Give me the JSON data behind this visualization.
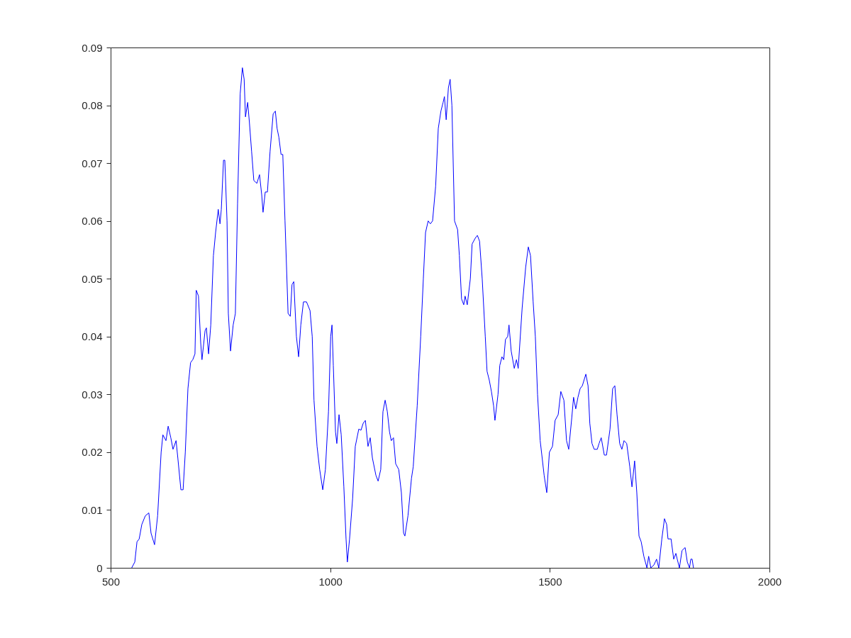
{
  "chart_data": {
    "type": "line",
    "x": [
      548,
      555,
      560,
      565,
      571,
      579,
      587,
      592,
      600,
      607,
      615,
      619,
      626,
      631,
      637,
      642,
      649,
      653,
      660,
      665,
      670,
      676,
      682,
      687,
      692,
      695,
      700,
      705,
      708,
      715,
      718,
      723,
      728,
      734,
      739,
      745,
      749,
      752,
      757,
      760,
      765,
      768,
      773,
      779,
      784,
      789,
      795,
      800,
      804,
      807,
      812,
      816,
      821,
      826,
      833,
      839,
      844,
      847,
      852,
      857,
      863,
      870,
      875,
      879,
      883,
      888,
      892,
      897,
      904,
      909,
      913,
      917,
      923,
      928,
      933,
      939,
      946,
      954,
      959,
      963,
      970,
      976,
      983,
      989,
      996,
      1001,
      1004,
      1007,
      1012,
      1015,
      1020,
      1025,
      1031,
      1036,
      1039,
      1044,
      1051,
      1057,
      1065,
      1070,
      1075,
      1080,
      1086,
      1091,
      1096,
      1104,
      1109,
      1115,
      1120,
      1125,
      1130,
      1135,
      1139,
      1144,
      1149,
      1156,
      1162,
      1167,
      1170,
      1177,
      1185,
      1189,
      1198,
      1206,
      1212,
      1217,
      1223,
      1228,
      1233,
      1240,
      1246,
      1252,
      1257,
      1260,
      1264,
      1269,
      1273,
      1277,
      1283,
      1290,
      1294,
      1299,
      1304,
      1307,
      1312,
      1319,
      1323,
      1330,
      1335,
      1340,
      1346,
      1353,
      1357,
      1362,
      1367,
      1372,
      1375,
      1382,
      1386,
      1391,
      1395,
      1399,
      1404,
      1407,
      1412,
      1419,
      1424,
      1428,
      1437,
      1445,
      1451,
      1456,
      1462,
      1467,
      1472,
      1478,
      1487,
      1493,
      1499,
      1506,
      1512,
      1519,
      1525,
      1532,
      1538,
      1543,
      1550,
      1554,
      1559,
      1564,
      1569,
      1574,
      1582,
      1587,
      1591,
      1596,
      1601,
      1608,
      1612,
      1617,
      1624,
      1629,
      1637,
      1643,
      1648,
      1653,
      1659,
      1664,
      1669,
      1675,
      1682,
      1687,
      1693,
      1698,
      1703,
      1708,
      1714,
      1721,
      1725,
      1730,
      1737,
      1743,
      1748,
      1755,
      1761,
      1766,
      1769,
      1776,
      1782,
      1787,
      1790,
      1795,
      1801,
      1808,
      1813,
      1818,
      1821,
      1824,
      1827
    ],
    "series": [
      {
        "color": "#0000ff",
        "values": [
          0,
          0.001,
          0.0045,
          0.005,
          0.0075,
          0.009,
          0.0095,
          0.006,
          0.004,
          0.009,
          0.02,
          0.023,
          0.022,
          0.0245,
          0.0225,
          0.0205,
          0.022,
          0.019,
          0.0135,
          0.0135,
          0.02,
          0.031,
          0.0355,
          0.036,
          0.037,
          0.048,
          0.047,
          0.039,
          0.036,
          0.041,
          0.0415,
          0.037,
          0.042,
          0.054,
          0.058,
          0.062,
          0.0595,
          0.062,
          0.0705,
          0.0705,
          0.06,
          0.044,
          0.0375,
          0.042,
          0.044,
          0.063,
          0.082,
          0.0865,
          0.0845,
          0.078,
          0.0805,
          0.077,
          0.072,
          0.067,
          0.0665,
          0.068,
          0.0645,
          0.0615,
          0.065,
          0.065,
          0.072,
          0.0785,
          0.079,
          0.076,
          0.0745,
          0.0715,
          0.0715,
          0.06,
          0.044,
          0.0435,
          0.049,
          0.0495,
          0.04,
          0.0365,
          0.042,
          0.046,
          0.046,
          0.0445,
          0.04,
          0.029,
          0.021,
          0.017,
          0.0135,
          0.017,
          0.027,
          0.04,
          0.042,
          0.035,
          0.0235,
          0.0215,
          0.0265,
          0.023,
          0.014,
          0.005,
          0.001,
          0.005,
          0.012,
          0.021,
          0.024,
          0.0238,
          0.025,
          0.0255,
          0.021,
          0.0225,
          0.019,
          0.016,
          0.015,
          0.017,
          0.027,
          0.029,
          0.027,
          0.0235,
          0.022,
          0.0225,
          0.018,
          0.017,
          0.013,
          0.006,
          0.0055,
          0.009,
          0.0155,
          0.0175,
          0.028,
          0.04,
          0.05,
          0.058,
          0.06,
          0.0595,
          0.06,
          0.066,
          0.076,
          0.079,
          0.0805,
          0.0815,
          0.0775,
          0.083,
          0.0845,
          0.08,
          0.06,
          0.0585,
          0.054,
          0.0465,
          0.0455,
          0.047,
          0.0455,
          0.05,
          0.056,
          0.057,
          0.0575,
          0.0565,
          0.05,
          0.04,
          0.034,
          0.0325,
          0.0305,
          0.028,
          0.0255,
          0.03,
          0.035,
          0.0365,
          0.036,
          0.0395,
          0.04,
          0.042,
          0.0375,
          0.0345,
          0.036,
          0.0345,
          0.045,
          0.052,
          0.0555,
          0.054,
          0.046,
          0.04,
          0.03,
          0.022,
          0.016,
          0.013,
          0.02,
          0.021,
          0.0255,
          0.0265,
          0.0305,
          0.029,
          0.022,
          0.0205,
          0.026,
          0.0295,
          0.0275,
          0.0295,
          0.031,
          0.0315,
          0.0335,
          0.0315,
          0.025,
          0.0215,
          0.0205,
          0.0205,
          0.0215,
          0.0225,
          0.0195,
          0.0195,
          0.024,
          0.031,
          0.0315,
          0.0265,
          0.0215,
          0.0205,
          0.022,
          0.0215,
          0.0175,
          0.014,
          0.0185,
          0.013,
          0.0055,
          0.0045,
          0.002,
          0,
          0.002,
          0,
          0.0005,
          0.0015,
          0,
          0.005,
          0.0085,
          0.0075,
          0.005,
          0.005,
          0.0015,
          0.0025,
          0.0015,
          0,
          0.003,
          0.0035,
          0.001,
          0,
          0.0015,
          0.0015,
          0
        ]
      }
    ],
    "xlim": [
      500,
      2000
    ],
    "xticks": [
      500,
      1000,
      1500,
      2000
    ],
    "ylim": [
      0,
      0.09
    ],
    "yticks": [
      0,
      0.01,
      0.02,
      0.03,
      0.04,
      0.05,
      0.06,
      0.07,
      0.08,
      0.09
    ],
    "grid": false,
    "marker": "none",
    "line_style": "solid"
  }
}
